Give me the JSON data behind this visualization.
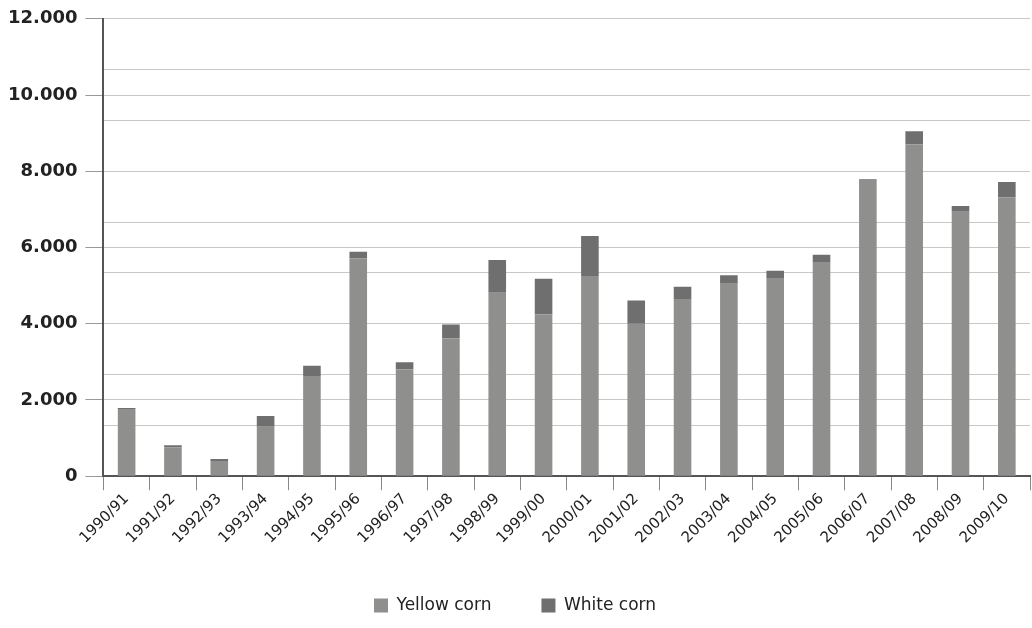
{
  "chart_data": {
    "type": "bar",
    "stacked": true,
    "categories": [
      "1990/91",
      "1991/92",
      "1992/93",
      "1993/94",
      "1994/95",
      "1995/96",
      "1996/97",
      "1997/98",
      "1998/99",
      "1999/00",
      "2000/01",
      "2001/02",
      "2002/03",
      "2003/04",
      "2004/05",
      "2005/06",
      "2006/07",
      "2007/08",
      "2008/09",
      "2009/10"
    ],
    "series": [
      {
        "name": "Yellow corn",
        "color": "#8f908d",
        "values": [
          1760,
          760,
          400,
          1300,
          2630,
          5720,
          2800,
          3620,
          4810,
          4240,
          5250,
          4000,
          4650,
          5050,
          5200,
          5620,
          7770,
          8700,
          6940,
          7320
        ]
      },
      {
        "name": "White corn",
        "color": "#6f6f6f",
        "values": [
          30,
          50,
          50,
          280,
          270,
          170,
          190,
          360,
          860,
          940,
          1050,
          610,
          320,
          220,
          190,
          190,
          20,
          350,
          150,
          400
        ]
      }
    ],
    "ylim": [
      0,
      12000
    ],
    "yticks": [
      {
        "value": 0,
        "label": "0"
      },
      {
        "value": 2000,
        "label": "2.000"
      },
      {
        "value": 4000,
        "label": "4.000"
      },
      {
        "value": 6000,
        "label": "6.000"
      },
      {
        "value": 8000,
        "label": "8.000"
      },
      {
        "value": 10000,
        "label": "10.000"
      },
      {
        "value": 12000,
        "label": "12.000"
      },
      {
        "value": 1333,
        "label": null
      },
      {
        "value": 2667,
        "label": null
      },
      {
        "value": 5333,
        "label": null
      },
      {
        "value": 6667,
        "label": null
      },
      {
        "value": 9333,
        "label": null
      },
      {
        "value": 10667,
        "label": null
      }
    ],
    "grid": "y",
    "legend": "bottom"
  }
}
